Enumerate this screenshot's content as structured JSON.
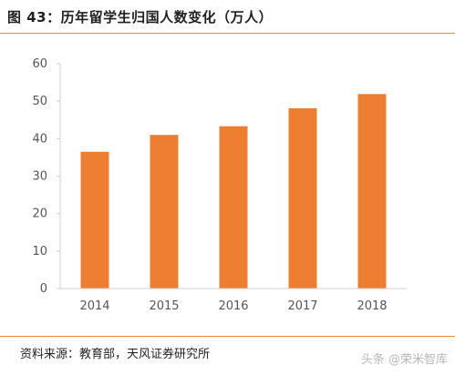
{
  "header": {
    "title": "图 43：历年留学生归国人数变化（万人）"
  },
  "footer": {
    "source": "资料来源：教育部，天风证券研究所",
    "watermark": "头条 @荣米智库"
  },
  "colors": {
    "bar": "#ed7d31",
    "rule": "#e8893a",
    "axis": "#d0d0d0"
  },
  "chart_data": {
    "type": "bar",
    "title": "",
    "xlabel": "",
    "ylabel": "",
    "categories": [
      "2014",
      "2015",
      "2016",
      "2017",
      "2018"
    ],
    "values": [
      36.5,
      41.0,
      43.3,
      48.1,
      51.9
    ],
    "ylim": [
      0,
      60
    ],
    "yticks": [
      0,
      10,
      20,
      30,
      40,
      50,
      60
    ],
    "grid": false,
    "legend": "none"
  }
}
